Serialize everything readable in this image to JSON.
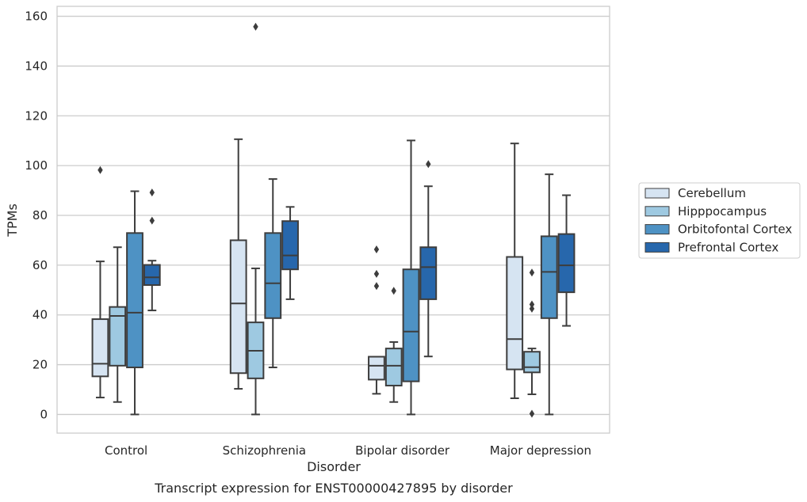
{
  "caption": "Transcript expression for ENST00000427895 by disorder",
  "chart_data": {
    "type": "box",
    "xlabel": "Disorder",
    "ylabel": "TPMs",
    "ylim": [
      -7.5,
      164
    ],
    "yticks": [
      0,
      20,
      40,
      60,
      80,
      100,
      120,
      140,
      160
    ],
    "grid": true,
    "legend_placement": "right",
    "categories": [
      "Control",
      "Schizophrenia",
      "Bipolar disorder",
      "Major depression"
    ],
    "series": [
      {
        "name": "Cerebellum",
        "color": "#d6e4f2",
        "boxes": [
          {
            "whislo": 6.8,
            "q1": 15.3,
            "med": 20.4,
            "q3": 38.3,
            "whishi": 61.5,
            "fliers": [
              98.2
            ]
          },
          {
            "whislo": 10.3,
            "q1": 16.6,
            "med": 44.6,
            "q3": 70.0,
            "whishi": 110.6,
            "fliers": []
          },
          {
            "whislo": 8.3,
            "q1": 14.0,
            "med": 19.6,
            "q3": 23.2,
            "whishi": 23.2,
            "fliers": [
              51.6,
              56.5,
              66.3
            ]
          },
          {
            "whislo": 6.5,
            "q1": 18.1,
            "med": 30.3,
            "q3": 63.3,
            "whishi": 108.9,
            "fliers": []
          }
        ]
      },
      {
        "name": "Hipppocampus",
        "color": "#9ec9e1",
        "boxes": [
          {
            "whislo": 5.0,
            "q1": 19.6,
            "med": 39.6,
            "q3": 43.2,
            "whishi": 67.2,
            "fliers": []
          },
          {
            "whislo": 0.0,
            "q1": 14.5,
            "med": 25.6,
            "q3": 37.0,
            "whishi": 58.7,
            "fliers": [
              155.8
            ]
          },
          {
            "whislo": 5.0,
            "q1": 11.6,
            "med": 19.6,
            "q3": 26.5,
            "whishi": 29.1,
            "fliers": [
              49.7
            ]
          },
          {
            "whislo": 8.1,
            "q1": 16.9,
            "med": 19.0,
            "q3": 25.2,
            "whishi": 26.5,
            "fliers": [
              0.3,
              42.5,
              44.2,
              57.0
            ]
          }
        ]
      },
      {
        "name": "Orbitofontal Cortex",
        "color": "#4e92c4",
        "boxes": [
          {
            "whislo": 0.0,
            "q1": 18.9,
            "med": 40.9,
            "q3": 72.9,
            "whishi": 89.7,
            "fliers": []
          },
          {
            "whislo": 18.9,
            "q1": 38.7,
            "med": 52.7,
            "q3": 72.9,
            "whishi": 94.6,
            "fliers": []
          },
          {
            "whislo": 0.0,
            "q1": 13.3,
            "med": 33.3,
            "q3": 58.3,
            "whishi": 110.1,
            "fliers": []
          },
          {
            "whislo": 0.0,
            "q1": 38.7,
            "med": 57.3,
            "q3": 71.6,
            "whishi": 96.5,
            "fliers": []
          }
        ]
      },
      {
        "name": "Prefrontal Cortex",
        "color": "#2767ac",
        "boxes": [
          {
            "whislo": 41.8,
            "q1": 52.0,
            "med": 55.1,
            "q3": 60.1,
            "whishi": 61.8,
            "fliers": [
              77.9,
              89.2
            ]
          },
          {
            "whislo": 46.3,
            "q1": 58.3,
            "med": 63.9,
            "q3": 77.7,
            "whishi": 83.4,
            "fliers": []
          },
          {
            "whislo": 23.3,
            "q1": 46.3,
            "med": 59.2,
            "q3": 67.2,
            "whishi": 91.7,
            "fliers": [
              100.6
            ]
          },
          {
            "whislo": 35.6,
            "q1": 49.1,
            "med": 59.9,
            "q3": 72.5,
            "whishi": 88.1,
            "fliers": []
          }
        ]
      }
    ]
  }
}
